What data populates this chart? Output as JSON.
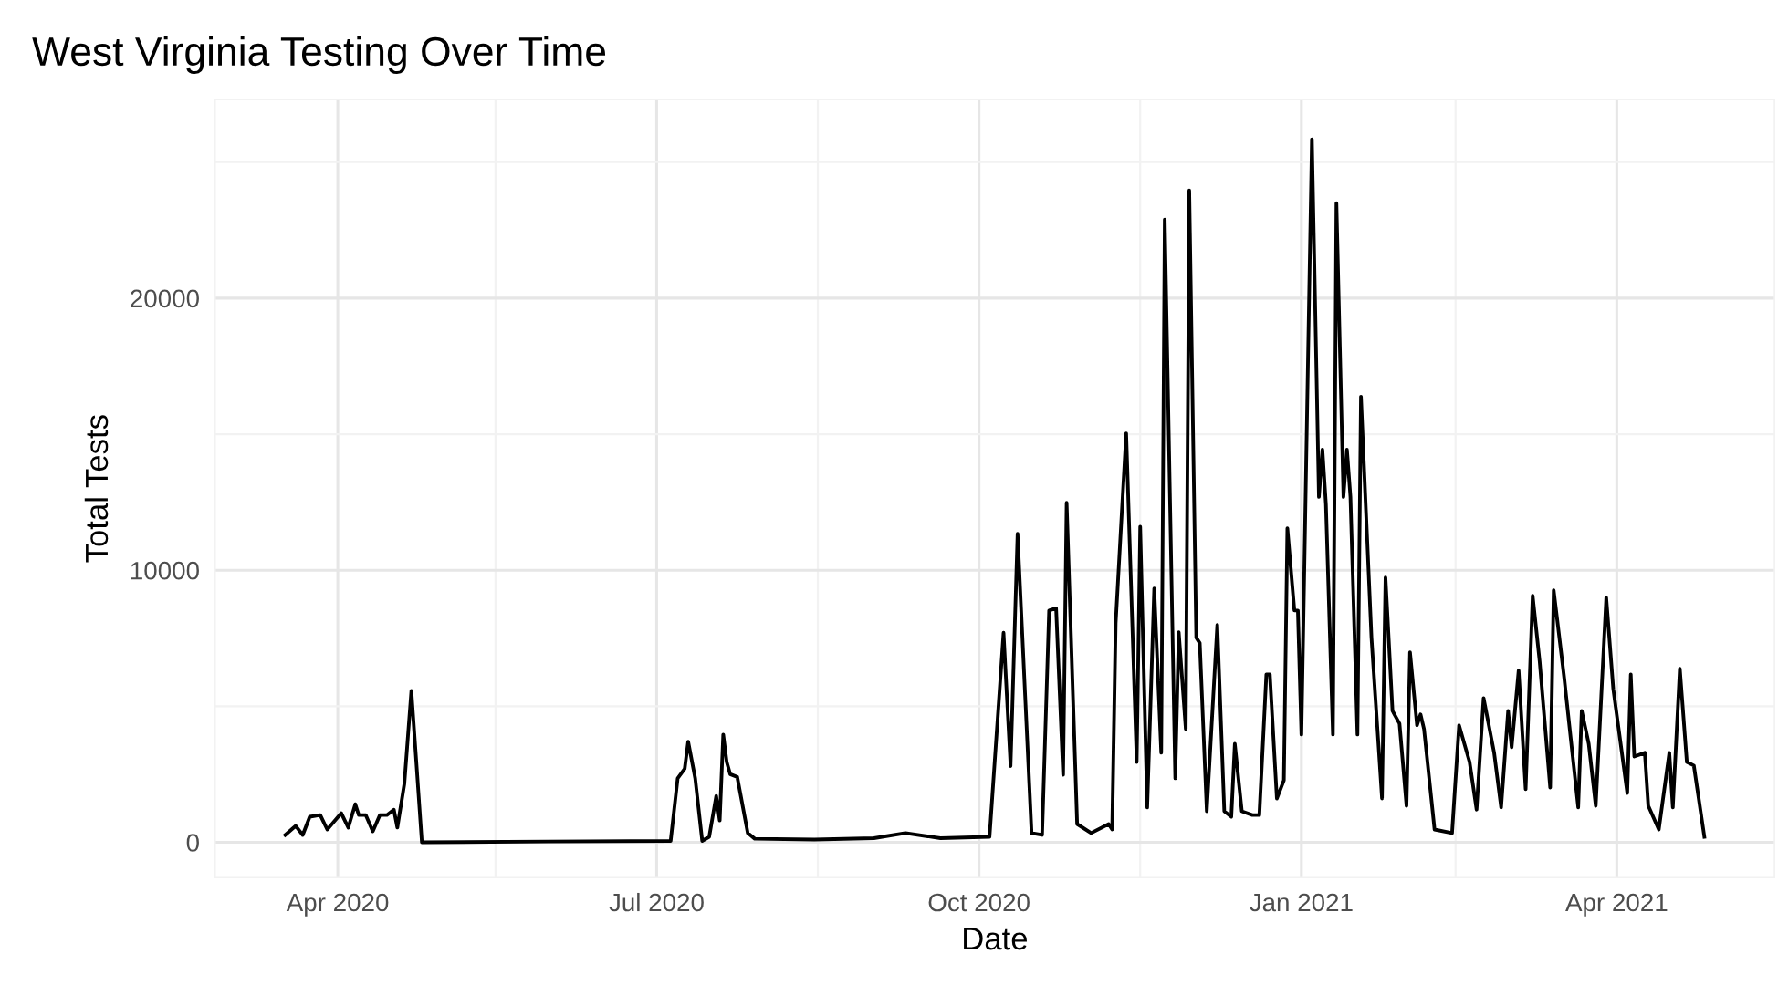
{
  "chart_data": {
    "type": "line",
    "title": "West Virginia Testing Over Time",
    "xlabel": "Date",
    "ylabel": "Total Tests",
    "x": [
      "2020-03-17",
      "2020-03-20",
      "2020-03-22",
      "2020-03-24",
      "2020-03-27",
      "2020-03-29",
      "2020-04-02",
      "2020-04-04",
      "2020-04-06",
      "2020-04-07",
      "2020-04-09",
      "2020-04-11",
      "2020-04-13",
      "2020-04-15",
      "2020-04-17",
      "2020-04-18",
      "2020-04-20",
      "2020-04-22",
      "2020-04-25",
      "2020-05-31",
      "2020-07-05",
      "2020-07-07",
      "2020-07-09",
      "2020-07-10",
      "2020-07-12",
      "2020-07-14",
      "2020-07-16",
      "2020-07-18",
      "2020-07-19",
      "2020-07-20",
      "2020-07-21",
      "2020-07-22",
      "2020-07-24",
      "2020-07-27",
      "2020-07-29",
      "2020-08-15",
      "2020-09-01",
      "2020-09-10",
      "2020-09-20",
      "2020-10-04",
      "2020-10-08",
      "2020-10-10",
      "2020-10-12",
      "2020-10-16",
      "2020-10-19",
      "2020-10-21",
      "2020-10-23",
      "2020-10-25",
      "2020-10-26",
      "2020-10-29",
      "2020-11-02",
      "2020-11-07",
      "2020-11-08",
      "2020-11-09",
      "2020-11-12",
      "2020-11-15",
      "2020-11-16",
      "2020-11-18",
      "2020-11-20",
      "2020-11-22",
      "2020-11-23",
      "2020-11-26",
      "2020-11-27",
      "2020-11-29",
      "2020-11-30",
      "2020-12-02",
      "2020-12-03",
      "2020-12-05",
      "2020-12-08",
      "2020-12-10",
      "2020-12-12",
      "2020-12-13",
      "2020-12-15",
      "2020-12-18",
      "2020-12-20",
      "2020-12-22",
      "2020-12-23",
      "2020-12-25",
      "2020-12-27",
      "2020-12-28",
      "2020-12-30",
      "2020-12-31",
      "2021-01-01",
      "2021-01-04",
      "2021-01-06",
      "2021-01-07",
      "2021-01-08",
      "2021-01-10",
      "2021-01-11",
      "2021-01-13",
      "2021-01-14",
      "2021-01-15",
      "2021-01-17",
      "2021-01-18",
      "2021-01-21",
      "2021-01-24",
      "2021-01-25",
      "2021-01-27",
      "2021-01-29",
      "2021-01-31",
      "2021-02-01",
      "2021-02-03",
      "2021-02-04",
      "2021-02-05",
      "2021-02-08",
      "2021-02-13",
      "2021-02-15",
      "2021-02-18",
      "2021-02-20",
      "2021-02-22",
      "2021-02-25",
      "2021-02-27",
      "2021-03-01",
      "2021-03-02",
      "2021-03-04",
      "2021-03-06",
      "2021-03-08",
      "2021-03-10",
      "2021-03-13",
      "2021-03-14",
      "2021-03-17",
      "2021-03-21",
      "2021-03-22",
      "2021-03-24",
      "2021-03-26",
      "2021-03-29",
      "2021-03-31",
      "2021-04-04",
      "2021-04-05",
      "2021-04-06",
      "2021-04-09",
      "2021-04-10",
      "2021-04-13",
      "2021-04-16",
      "2021-04-17",
      "2021-04-19",
      "2021-04-21",
      "2021-04-23",
      "2021-04-26"
    ],
    "series": [
      {
        "color": "#000000",
        "values": [
          270,
          600,
          270,
          940,
          1000,
          470,
          1070,
          540,
          1400,
          1000,
          1000,
          400,
          1000,
          1000,
          1200,
          540,
          2150,
          5570,
          0,
          30,
          50,
          2350,
          2700,
          3700,
          2350,
          50,
          200,
          1700,
          800,
          3960,
          2950,
          2500,
          2400,
          340,
          130,
          100,
          150,
          340,
          150,
          200,
          7700,
          2800,
          11340,
          340,
          270,
          8520,
          8600,
          2480,
          12480,
          670,
          340,
          670,
          470,
          8050,
          15030,
          2950,
          11600,
          1280,
          9330,
          3290,
          22890,
          2350,
          7720,
          4160,
          23960,
          7520,
          7320,
          1140,
          7990,
          1140,
          940,
          3620,
          1140,
          1000,
          1000,
          6170,
          6170,
          1610,
          2280,
          11540,
          8520,
          8520,
          3960,
          25840,
          12690,
          14430,
          12420,
          3960,
          23490,
          12690,
          14430,
          12690,
          3960,
          16380,
          7520,
          1610,
          9730,
          4830,
          4360,
          1340,
          6980,
          4300,
          4700,
          4160,
          470,
          340,
          4300,
          2950,
          1200,
          5300,
          3290,
          1280,
          4830,
          3490,
          6310,
          1950,
          9060,
          6640,
          2010,
          9260,
          6040,
          1280,
          4830,
          3620,
          1340,
          8990,
          5640,
          1810,
          6170,
          3150,
          3290,
          1340,
          470,
          3290,
          1280,
          6380,
          2950,
          2820,
          200
        ]
      }
    ],
    "xlim": [
      "2020-02-26",
      "2021-05-16"
    ],
    "xticks": [
      {
        "value": "2020-04-01",
        "label": "Apr 2020"
      },
      {
        "value": "2020-05-16",
        "label": null
      },
      {
        "value": "2020-07-01",
        "label": "Jul 2020"
      },
      {
        "value": "2020-08-16",
        "label": null
      },
      {
        "value": "2020-10-01",
        "label": "Oct 2020"
      },
      {
        "value": "2020-11-16",
        "label": null
      },
      {
        "value": "2021-01-01",
        "label": "Jan 2021"
      },
      {
        "value": "2021-02-14",
        "label": null
      },
      {
        "value": "2021-04-01",
        "label": "Apr 2021"
      }
    ],
    "ylim": [
      -1300,
      27300
    ],
    "yticks": [
      0,
      {
        "value": 5000,
        "label": null
      },
      10000,
      {
        "value": 15000,
        "label": null
      },
      20000,
      {
        "value": 25000,
        "label": null
      }
    ],
    "grid": true,
    "line_style": "solid"
  }
}
